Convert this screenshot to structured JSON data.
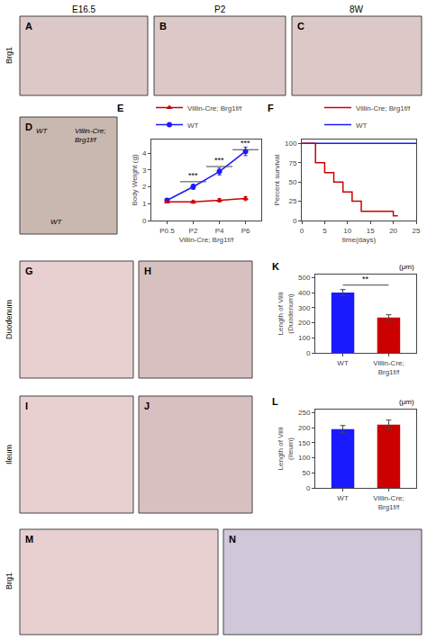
{
  "column_labels": [
    "E16.5",
    "P2",
    "8W"
  ],
  "row_labels": [
    "Brg1",
    "Duodenum",
    "Ileum",
    "Brg1"
  ],
  "chart_data": [
    {
      "type": "image",
      "title": "A",
      "color": "#ddc8c8"
    },
    {
      "type": "image",
      "title": "B",
      "color": "#ddc8c8"
    },
    {
      "type": "image",
      "title": "C",
      "color": "#ddc8c8"
    },
    {
      "type": "image",
      "title": "D",
      "color": "#c8b8b0",
      "annotations": [
        "WT",
        "Villin-Cre;\nBrg1f/f",
        "WT"
      ]
    },
    {
      "type": "line",
      "title": "E",
      "categories": [
        "P0.5",
        "P2",
        "P4",
        "P6"
      ],
      "series": [
        {
          "name": "WT",
          "color": "#1a1aff",
          "marker": "circle",
          "values": [
            1.2,
            2.0,
            2.9,
            4.1
          ],
          "errors": [
            0.1,
            0.15,
            0.2,
            0.25
          ]
        },
        {
          "name": "Villin-Cre; Brg1f/f",
          "color": "#cc0000",
          "marker": "triangle-up",
          "values": [
            1.1,
            1.1,
            1.2,
            1.3
          ],
          "errors": [
            0.05,
            0.08,
            0.1,
            0.12
          ]
        }
      ],
      "xlabel": "Villin-Cre; Brg1f/f",
      "ylabel": "Body Weight (g)",
      "ylim": [
        0,
        4.8
      ],
      "yticks": [
        0,
        1,
        2,
        3,
        4
      ],
      "legend": "upper left",
      "grid": false,
      "annotations": [
        {
          "text": "***",
          "x0": 0.5,
          "x1": 1.5,
          "y": 2.3
        },
        {
          "text": "***",
          "x0": 1.5,
          "x1": 2.5,
          "y": 3.2
        },
        {
          "text": "***",
          "x0": 2.5,
          "x1": 3.5,
          "y": 4.2
        }
      ]
    },
    {
      "type": "line",
      "title": "F",
      "series": [
        {
          "name": "WT",
          "color": "#1a1aff",
          "x": [
            0,
            25
          ],
          "values": [
            100,
            100
          ]
        },
        {
          "name": "Villin-Cre; Brg1f/f",
          "color": "#cc0000",
          "type": "step",
          "x": [
            0,
            3,
            3,
            5,
            5,
            7,
            7,
            9,
            9,
            11,
            11,
            13,
            13,
            20,
            20,
            21
          ],
          "values": [
            100,
            100,
            75,
            75,
            62,
            62,
            50,
            50,
            37,
            37,
            25,
            25,
            12,
            12,
            6,
            6
          ]
        }
      ],
      "xlabel": "time(days)",
      "ylabel": "Percent survival",
      "xlim": [
        0,
        25
      ],
      "xticks": [
        0,
        5,
        10,
        15,
        20,
        25
      ],
      "ylim": [
        0,
        105
      ],
      "yticks": [
        0,
        25,
        50,
        75,
        100
      ],
      "legend": "upper right",
      "grid": false
    },
    {
      "type": "image",
      "title": "G",
      "color": "#e8d0d0"
    },
    {
      "type": "image",
      "title": "H",
      "color": "#d8c0c0"
    },
    {
      "type": "bar",
      "title": "K",
      "categories": [
        "WT",
        "Villin-Cre;\nBrg1f/f"
      ],
      "values": [
        400,
        235
      ],
      "errors": [
        20,
        18
      ],
      "colors": [
        "#1a1aff",
        "#cc0000"
      ],
      "ylabel": "Length of Villi\n(Duodenum)",
      "subtitle": "(μm)",
      "ylim": [
        0,
        520
      ],
      "yticks": [
        0,
        100,
        200,
        300,
        400,
        500
      ],
      "grid": false,
      "annotations": [
        {
          "text": "**",
          "x0": 0,
          "x1": 1,
          "y": 450
        }
      ]
    },
    {
      "type": "image",
      "title": "I",
      "color": "#e8d0d0"
    },
    {
      "type": "image",
      "title": "J",
      "color": "#d8c0c0"
    },
    {
      "type": "bar",
      "title": "L",
      "categories": [
        "WT",
        "Villin-Cre;\nBrg1f/f"
      ],
      "values": [
        195,
        210
      ],
      "errors": [
        12,
        15
      ],
      "colors": [
        "#1a1aff",
        "#cc0000"
      ],
      "ylabel": "Length of Villi\n(Ileum)",
      "subtitle": "(μm)",
      "ylim": [
        0,
        260
      ],
      "yticks": [
        0,
        50,
        100,
        150,
        200,
        250
      ],
      "grid": false
    },
    {
      "type": "image",
      "title": "M",
      "color": "#e8d0d0"
    },
    {
      "type": "image",
      "title": "N",
      "color": "#d0c8d8"
    }
  ]
}
